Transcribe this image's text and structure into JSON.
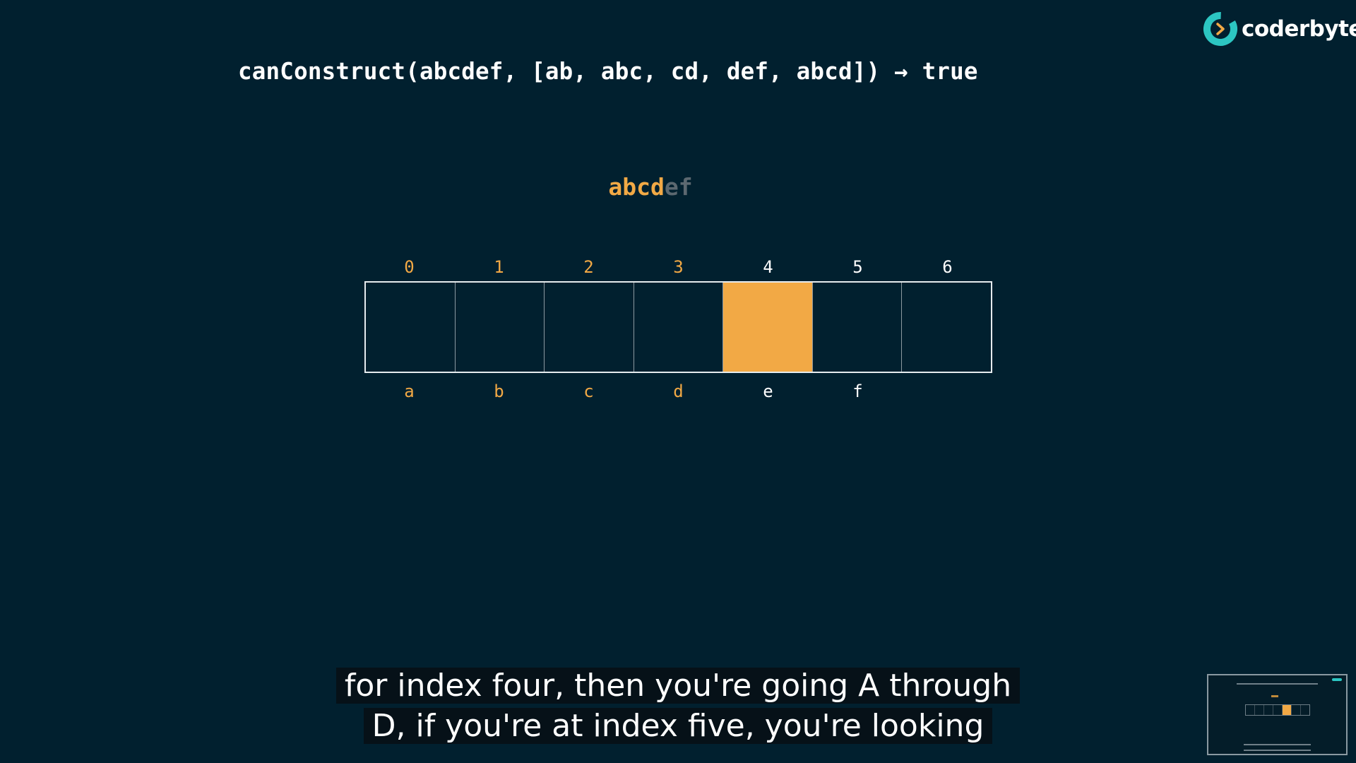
{
  "brand": {
    "name": "coderbyte",
    "accent_color": "#2cc6c2"
  },
  "title": "canConstruct(abcdef, [ab, abc, cd, def, abcd]) → true",
  "word": {
    "done": "abcd",
    "rest": "ef"
  },
  "table": {
    "indices": [
      "0",
      "1",
      "2",
      "3",
      "4",
      "5",
      "6"
    ],
    "letters": [
      "a",
      "b",
      "c",
      "d",
      "e",
      "f",
      ""
    ],
    "current_index": 4,
    "highlight_color": "#f2a945",
    "visited_label_color": "#f2a945",
    "unvisited_label_color": "#ffffff"
  },
  "subtitle": {
    "line1": "for index four, then you're going A through",
    "line2": "D, if you're at index five, you're looking"
  }
}
